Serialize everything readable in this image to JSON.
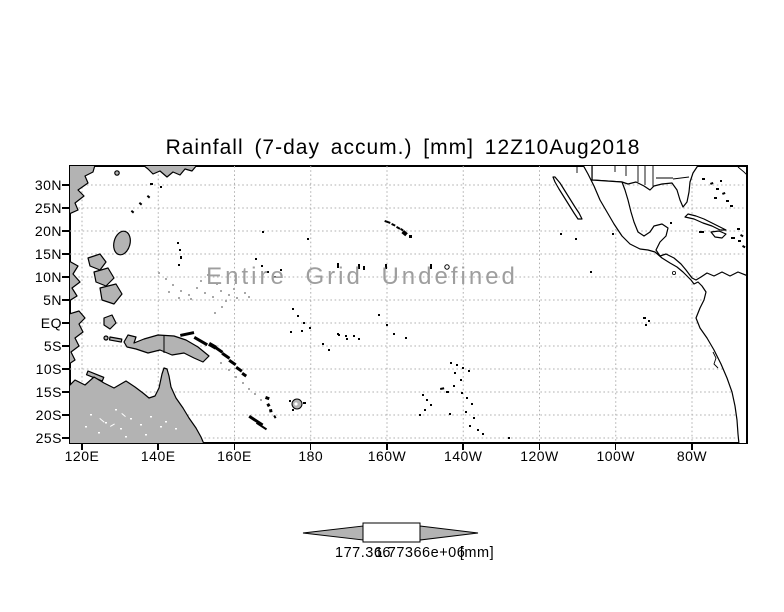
{
  "title": "Rainfall (7-day accum.) [mm] 12Z10Aug2018",
  "plot": {
    "undefined_notice": "Entire Grid Undefined",
    "y_axis_labels": [
      "30N",
      "25N",
      "20N",
      "15N",
      "10N",
      "5N",
      "EQ",
      "5S",
      "10S",
      "15S",
      "20S",
      "25S"
    ],
    "x_axis_labels": [
      "120E",
      "140E",
      "160E",
      "180",
      "160W",
      "140W",
      "120W",
      "100W",
      "80W"
    ]
  },
  "colorbar": {
    "min_label": "177.366",
    "max_label": "1.77366e+06",
    "units_label": "[mm]"
  },
  "colors": {
    "background": "#ffffff",
    "frame": "#000000",
    "land_fill": "#b3b3b3",
    "coast_outline": "#000000",
    "grid_line": "#b0b0b0",
    "undefined_text": "#9e9e9e",
    "speck_gray": "#a8a8a8"
  },
  "chart_data": {
    "type": "heatmap",
    "title": "Rainfall (7-day accum.) [mm] 12Z10Aug2018",
    "variable": "Rainfall (7-day accum.)",
    "units": "[mm]",
    "valid_time": "12Z10Aug2018",
    "x_tick_labels": [
      "120E",
      "140E",
      "160E",
      "180",
      "160W",
      "140W",
      "120W",
      "100W",
      "80W"
    ],
    "y_tick_labels": [
      "30N",
      "25N",
      "20N",
      "15N",
      "10N",
      "5N",
      "EQ",
      "5S",
      "10S",
      "15S",
      "20S",
      "25S"
    ],
    "values": null,
    "status_annotation": "Entire Grid Undefined",
    "grid": true,
    "basemap": "Pacific Ocean with surrounding continents",
    "colorbar": {
      "position": "bottom",
      "edge_labels": [
        "177.366",
        "1.77366e+06"
      ],
      "units": "[mm]"
    }
  }
}
